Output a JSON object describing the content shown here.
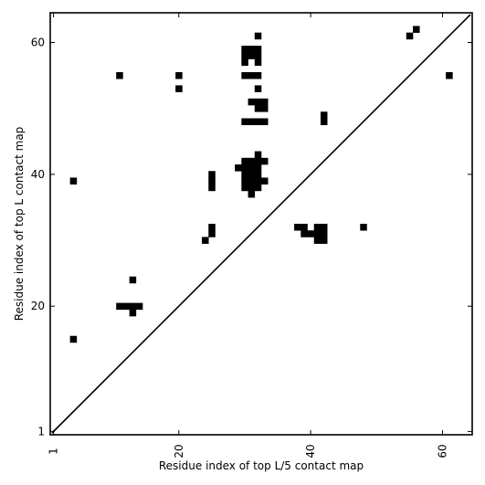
{
  "chart_data": {
    "type": "heatmap",
    "title": "",
    "xlabel": "Residue index of top L/5 contact map",
    "ylabel": "Residue index of top L contact map",
    "xlim": [
      1,
      64
    ],
    "ylim": [
      1,
      64
    ],
    "x_ticks": [
      "1",
      "20",
      "40",
      "60"
    ],
    "y_ticks": [
      "1",
      "20",
      "40",
      "60"
    ],
    "diagonal_line": true,
    "cell_color": "#000000",
    "background_color": "#ffffff",
    "cells": [
      [
        32,
        61
      ],
      [
        30,
        59
      ],
      [
        31,
        59
      ],
      [
        32,
        59
      ],
      [
        30,
        58
      ],
      [
        31,
        58
      ],
      [
        32,
        58
      ],
      [
        30,
        57
      ],
      [
        32,
        57
      ],
      [
        11,
        55
      ],
      [
        20,
        55
      ],
      [
        30,
        55
      ],
      [
        31,
        55
      ],
      [
        32,
        55
      ],
      [
        20,
        53
      ],
      [
        32,
        53
      ],
      [
        31,
        51
      ],
      [
        32,
        51
      ],
      [
        33,
        51
      ],
      [
        32,
        50
      ],
      [
        33,
        50
      ],
      [
        42,
        49
      ],
      [
        30,
        48
      ],
      [
        31,
        48
      ],
      [
        32,
        48
      ],
      [
        33,
        48
      ],
      [
        42,
        48
      ],
      [
        32,
        43
      ],
      [
        30,
        42
      ],
      [
        31,
        42
      ],
      [
        32,
        42
      ],
      [
        33,
        42
      ],
      [
        29,
        41
      ],
      [
        30,
        41
      ],
      [
        31,
        41
      ],
      [
        32,
        41
      ],
      [
        25,
        40
      ],
      [
        30,
        40
      ],
      [
        31,
        40
      ],
      [
        32,
        40
      ],
      [
        4,
        39
      ],
      [
        25,
        39
      ],
      [
        30,
        39
      ],
      [
        31,
        39
      ],
      [
        32,
        39
      ],
      [
        33,
        39
      ],
      [
        25,
        38
      ],
      [
        30,
        38
      ],
      [
        31,
        38
      ],
      [
        32,
        38
      ],
      [
        31,
        37
      ],
      [
        25,
        32
      ],
      [
        38,
        32
      ],
      [
        39,
        32
      ],
      [
        41,
        32
      ],
      [
        42,
        32
      ],
      [
        48,
        32
      ],
      [
        25,
        31
      ],
      [
        39,
        31
      ],
      [
        40,
        31
      ],
      [
        41,
        31
      ],
      [
        42,
        31
      ],
      [
        24,
        30
      ],
      [
        41,
        30
      ],
      [
        42,
        30
      ],
      [
        13,
        24
      ],
      [
        11,
        20
      ],
      [
        12,
        20
      ],
      [
        13,
        20
      ],
      [
        14,
        20
      ],
      [
        13,
        19
      ],
      [
        4,
        15
      ],
      [
        56,
        62
      ],
      [
        55,
        61
      ],
      [
        61,
        55
      ]
    ]
  }
}
